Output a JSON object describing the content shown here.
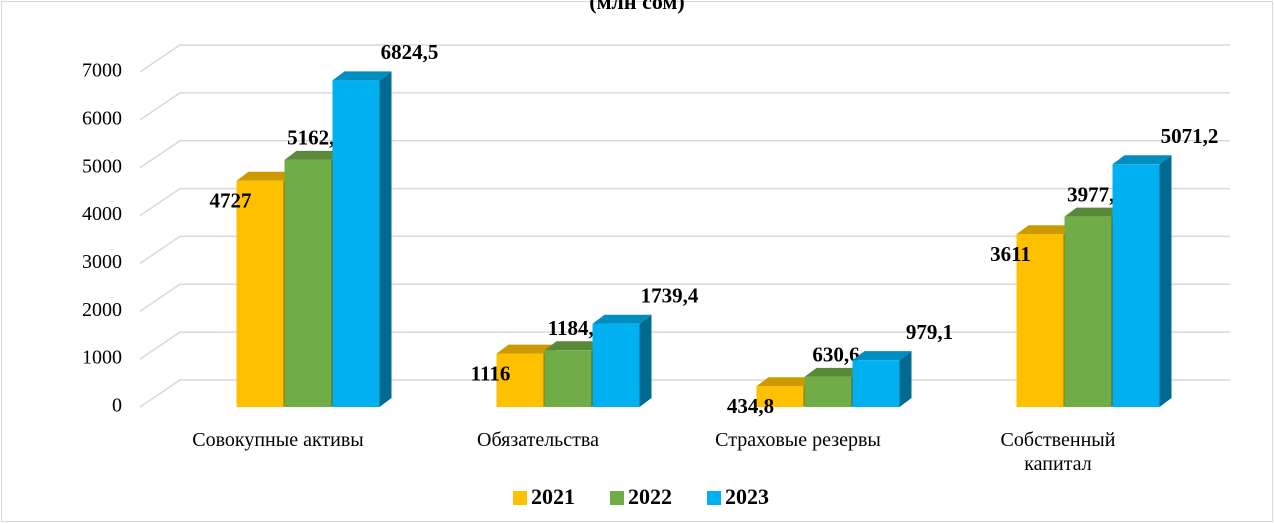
{
  "chart_data": {
    "type": "bar3d",
    "title": "(млн сом)",
    "categories": [
      "Совокупные активы",
      "Обязательства",
      "Страховые резервы",
      "Собственный капитал"
    ],
    "series": [
      {
        "name": "2021",
        "color": "#FFC000",
        "values": [
          4727,
          1116,
          434.8,
          3611
        ],
        "value_labels": [
          "4727",
          "1116",
          "434,8",
          "3611"
        ]
      },
      {
        "name": "2022",
        "color": "#70AD47",
        "values": [
          5162.6,
          1184.6,
          630.6,
          3977.9
        ],
        "value_labels": [
          "5162,6",
          "1184,6",
          "630,6",
          "3977,9"
        ]
      },
      {
        "name": "2023",
        "color": "#00B0F0",
        "values": [
          6824.5,
          1739.4,
          979.1,
          5071.2
        ],
        "value_labels": [
          "6824,5",
          "1739,4",
          "979,1",
          "5071,2"
        ]
      }
    ],
    "ylim": [
      0,
      7000
    ],
    "yticks": [
      0,
      1000,
      2000,
      3000,
      4000,
      5000,
      6000,
      7000
    ],
    "grid": true,
    "legend": "bottom"
  }
}
